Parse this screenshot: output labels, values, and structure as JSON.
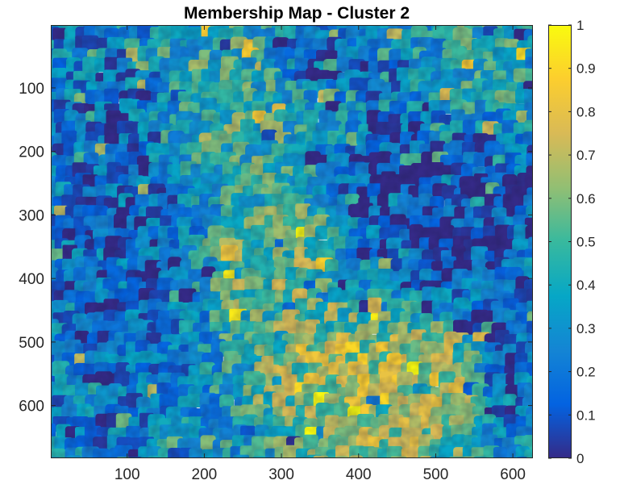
{
  "chart_data": {
    "type": "heatmap",
    "title": "Membership Map - Cluster 2",
    "xlabel": "",
    "ylabel": "",
    "xlim": [
      1,
      626
    ],
    "ylim": [
      1,
      683
    ],
    "y_direction": "reversed",
    "x_ticks": [
      100,
      200,
      300,
      400,
      500,
      600
    ],
    "y_ticks": [
      100,
      200,
      300,
      400,
      500,
      600
    ],
    "colormap": "parula",
    "colormap_stops": [
      "#352a87",
      "#0363e1",
      "#1485d4",
      "#06a7c6",
      "#38b99e",
      "#92bf73",
      "#d9ba56",
      "#fcce2e",
      "#f9fb0e"
    ],
    "color_limits": [
      0,
      1
    ],
    "colorbar": {
      "location": "right",
      "ticks": [
        0,
        0.1,
        0.2,
        0.3,
        0.4,
        0.5,
        0.6,
        0.7,
        0.8,
        0.9,
        1
      ],
      "tick_labels": [
        "0",
        "0.1",
        "0.2",
        "0.3",
        "0.4",
        "0.5",
        "0.6",
        "0.7",
        "0.8",
        "0.9",
        "1"
      ]
    },
    "approximate_membership_regions": [
      {
        "x": [
          1,
          180
        ],
        "y": [
          1,
          683
        ],
        "level": 0.15
      },
      {
        "x": [
          150,
          330
        ],
        "y": [
          1,
          250
        ],
        "level": 0.5
      },
      {
        "x": [
          380,
          626
        ],
        "y": [
          160,
          440
        ],
        "level": 0.03
      },
      {
        "x": [
          280,
          470
        ],
        "y": [
          1,
          120
        ],
        "level": 0.1
      },
      {
        "x": [
          560,
          626
        ],
        "y": [
          380,
          650
        ],
        "level": 0.05
      },
      {
        "x": [
          300,
          560
        ],
        "y": [
          460,
          683
        ],
        "level": 0.75
      },
      {
        "x": [
          220,
          400
        ],
        "y": [
          280,
          480
        ],
        "level": 0.6
      },
      {
        "x": [
          470,
          626
        ],
        "y": [
          1,
          150
        ],
        "level": 0.45
      }
    ]
  }
}
